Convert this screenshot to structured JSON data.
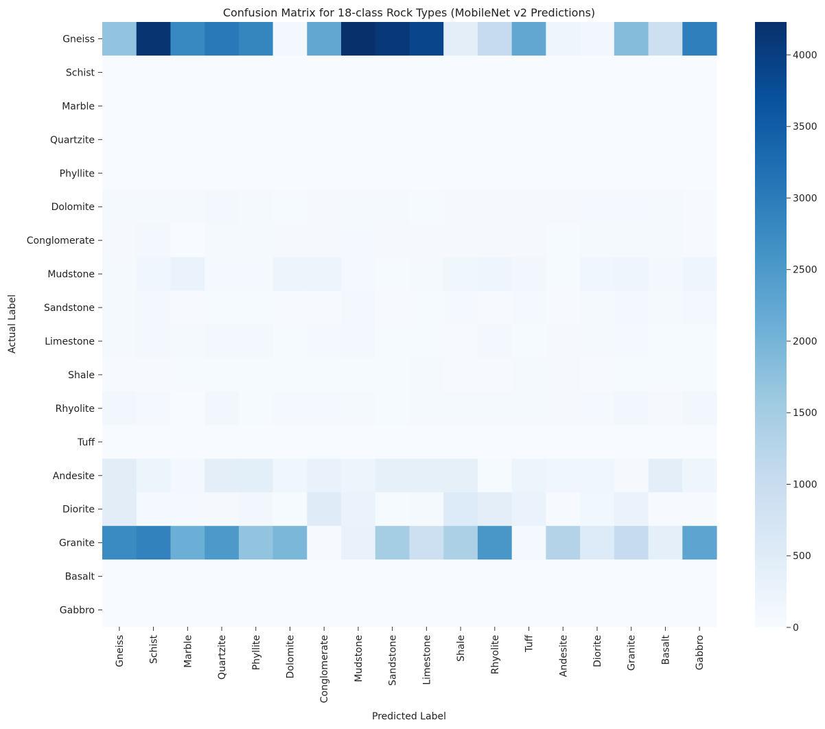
{
  "chart_data": {
    "type": "heatmap",
    "title": "Confusion Matrix for 18-class Rock Types (MobileNet v2 Predictions)",
    "xlabel": "Predicted Label",
    "ylabel": "Actual Label",
    "row_labels": [
      "Gneiss",
      "Schist",
      "Marble",
      "Quartzite",
      "Phyllite",
      "Dolomite",
      "Conglomerate",
      "Mudstone",
      "Sandstone",
      "Limestone",
      "Shale",
      "Rhyolite",
      "Tuff",
      "Andesite",
      "Diorite",
      "Granite",
      "Basalt",
      "Gabbro"
    ],
    "col_labels": [
      "Gneiss",
      "Schist",
      "Marble",
      "Quartzite",
      "Phyllite",
      "Dolomite",
      "Conglomerate",
      "Mudstone",
      "Sandstone",
      "Limestone",
      "Shale",
      "Rhyolite",
      "Tuff",
      "Andesite",
      "Diorite",
      "Granite",
      "Basalt",
      "Gabbro"
    ],
    "values": [
      [
        1700,
        4150,
        2800,
        3050,
        2850,
        100,
        2250,
        4230,
        4100,
        3900,
        420,
        1050,
        2250,
        180,
        120,
        1850,
        900,
        2950
      ],
      [
        5,
        5,
        5,
        5,
        5,
        5,
        5,
        5,
        5,
        5,
        5,
        5,
        5,
        5,
        5,
        5,
        5,
        5
      ],
      [
        5,
        5,
        5,
        5,
        5,
        5,
        5,
        5,
        5,
        5,
        5,
        5,
        5,
        5,
        5,
        5,
        5,
        5
      ],
      [
        5,
        5,
        5,
        5,
        5,
        5,
        5,
        5,
        5,
        5,
        5,
        5,
        5,
        5,
        5,
        5,
        5,
        5
      ],
      [
        10,
        10,
        10,
        10,
        10,
        10,
        10,
        10,
        10,
        10,
        10,
        10,
        10,
        10,
        10,
        10,
        10,
        10
      ],
      [
        70,
        70,
        70,
        110,
        60,
        40,
        50,
        60,
        60,
        40,
        50,
        50,
        50,
        50,
        80,
        80,
        60,
        20
      ],
      [
        50,
        100,
        10,
        60,
        70,
        50,
        50,
        80,
        50,
        50,
        50,
        50,
        50,
        40,
        60,
        60,
        70,
        30
      ],
      [
        70,
        160,
        280,
        80,
        80,
        220,
        220,
        80,
        40,
        60,
        170,
        200,
        130,
        40,
        160,
        200,
        110,
        200
      ],
      [
        60,
        110,
        30,
        40,
        40,
        30,
        30,
        110,
        30,
        40,
        80,
        20,
        80,
        20,
        70,
        90,
        70,
        90
      ],
      [
        70,
        110,
        70,
        100,
        100,
        40,
        80,
        90,
        40,
        40,
        20,
        90,
        40,
        50,
        60,
        80,
        40,
        40
      ],
      [
        30,
        30,
        40,
        40,
        40,
        40,
        40,
        40,
        40,
        70,
        30,
        30,
        70,
        50,
        20,
        40,
        40,
        40
      ],
      [
        120,
        80,
        10,
        120,
        40,
        80,
        80,
        60,
        40,
        70,
        70,
        70,
        70,
        50,
        80,
        120,
        50,
        120
      ],
      [
        10,
        10,
        10,
        10,
        10,
        10,
        10,
        10,
        10,
        10,
        10,
        10,
        10,
        10,
        10,
        10,
        10,
        10
      ],
      [
        450,
        230,
        100,
        420,
        440,
        160,
        300,
        210,
        370,
        380,
        380,
        40,
        210,
        170,
        160,
        50,
        430,
        180
      ],
      [
        450,
        80,
        80,
        50,
        130,
        40,
        500,
        270,
        40,
        70,
        560,
        420,
        270,
        30,
        140,
        280,
        30,
        30
      ],
      [
        2750,
        2900,
        2100,
        2500,
        1700,
        1950,
        30,
        300,
        1500,
        900,
        1400,
        2550,
        80,
        1300,
        550,
        1050,
        400,
        2300
      ],
      [
        10,
        10,
        10,
        10,
        10,
        10,
        10,
        10,
        10,
        10,
        10,
        10,
        10,
        10,
        10,
        10,
        10,
        10
      ],
      [
        5,
        5,
        5,
        5,
        5,
        5,
        5,
        5,
        5,
        5,
        5,
        5,
        5,
        5,
        5,
        5,
        5,
        5
      ]
    ],
    "colorbar": {
      "min": 0,
      "max": 4230,
      "ticks": [
        0,
        500,
        1000,
        1500,
        2000,
        2500,
        3000,
        3500,
        4000
      ],
      "colormap": "Blues"
    }
  }
}
